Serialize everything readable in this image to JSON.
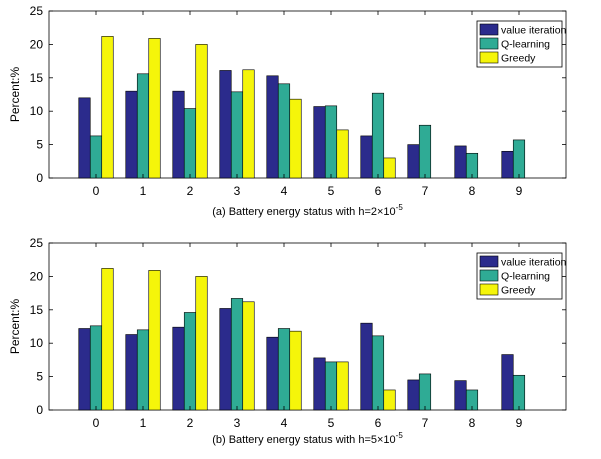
{
  "chart_data": [
    {
      "type": "bar",
      "caption": "(a) Battery energy status with h=2×10",
      "caption_exp": "-5",
      "ylabel": "Percent:%",
      "xlabel": "",
      "categories": [
        "0",
        "1",
        "2",
        "3",
        "4",
        "5",
        "6",
        "7",
        "8",
        "9"
      ],
      "ylim": [
        0,
        25
      ],
      "yticks": [
        0,
        5,
        10,
        15,
        20,
        25
      ],
      "grid": false,
      "legend_position": "top-right",
      "series": [
        {
          "name": "value iteration",
          "color": "#2b2b8c",
          "values": [
            12.0,
            13.0,
            13.0,
            16.1,
            15.3,
            10.7,
            6.3,
            5.0,
            4.8,
            4.0
          ]
        },
        {
          "name": "Q-learning",
          "color": "#2fab95",
          "values": [
            6.3,
            15.6,
            10.4,
            12.9,
            14.1,
            10.8,
            12.7,
            7.9,
            3.7,
            5.7
          ]
        },
        {
          "name": "Greedy",
          "color": "#f5f50a",
          "values": [
            21.2,
            20.9,
            20.0,
            16.2,
            11.8,
            7.2,
            3.0,
            0,
            0,
            0
          ]
        }
      ]
    },
    {
      "type": "bar",
      "caption": "(b) Battery energy status with h=5×10",
      "caption_exp": "-5",
      "ylabel": "Percent:%",
      "xlabel": "",
      "categories": [
        "0",
        "1",
        "2",
        "3",
        "4",
        "5",
        "6",
        "7",
        "8",
        "9"
      ],
      "ylim": [
        0,
        25
      ],
      "yticks": [
        0,
        5,
        10,
        15,
        20,
        25
      ],
      "grid": false,
      "legend_position": "top-right",
      "series": [
        {
          "name": "value iteration",
          "color": "#2b2b8c",
          "values": [
            12.2,
            11.3,
            12.4,
            15.2,
            10.9,
            7.8,
            13.0,
            4.5,
            4.4,
            8.3
          ]
        },
        {
          "name": "Q-learning",
          "color": "#2fab95",
          "values": [
            12.6,
            12.0,
            14.6,
            16.7,
            12.2,
            7.2,
            11.1,
            5.4,
            3.0,
            5.2
          ]
        },
        {
          "name": "Greedy",
          "color": "#f5f50a",
          "values": [
            21.2,
            20.9,
            20.0,
            16.2,
            11.8,
            7.2,
            3.0,
            0,
            0,
            0
          ]
        }
      ]
    }
  ]
}
